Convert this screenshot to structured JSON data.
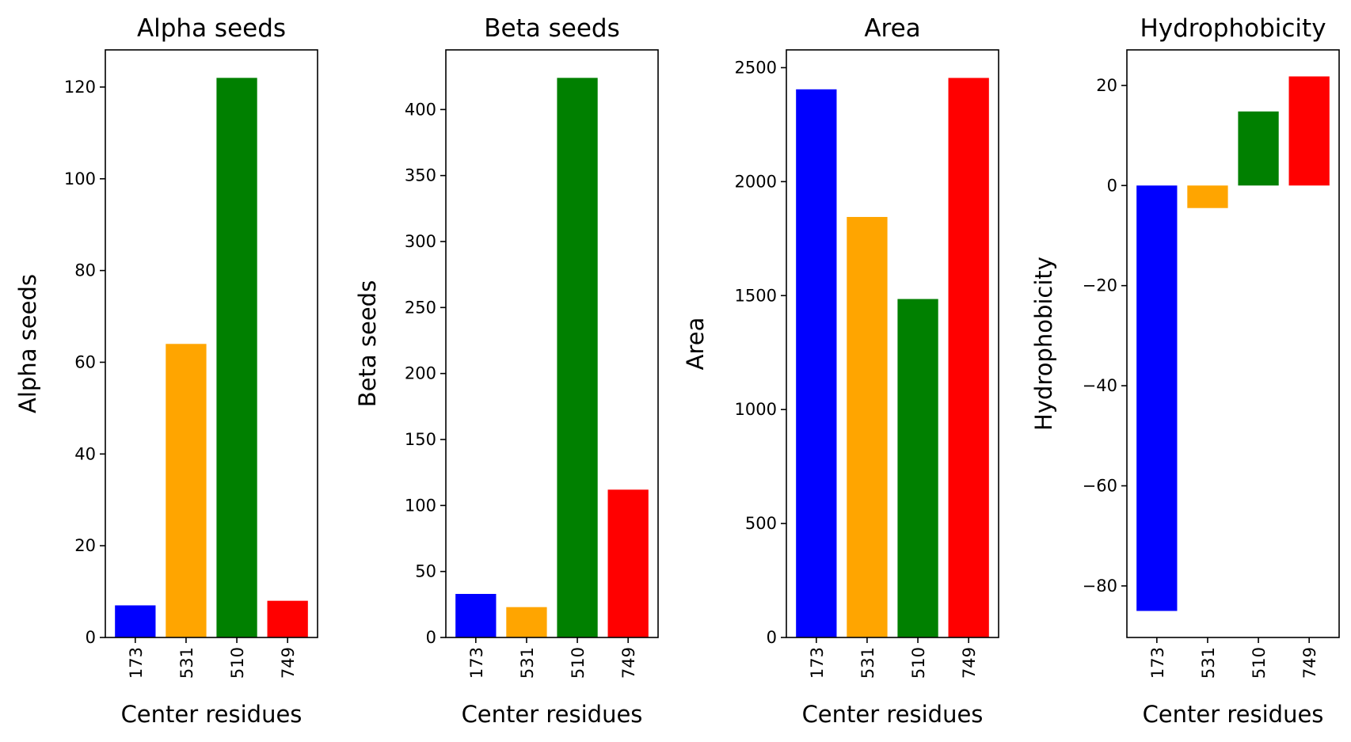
{
  "chart_data": [
    {
      "type": "bar",
      "title": "Alpha seeds",
      "xlabel": "Center residues",
      "ylabel": "Alpha seeds",
      "categories": [
        "173",
        "531",
        "510",
        "749"
      ],
      "values": [
        7,
        64,
        122,
        8
      ],
      "colors": [
        "#0000ff",
        "#ffa500",
        "#008000",
        "#ff0000"
      ],
      "ylim": [
        0,
        128.1
      ],
      "yticks": [
        0,
        20,
        40,
        60,
        80,
        100,
        120
      ],
      "ytick_labels": [
        "0",
        "20",
        "40",
        "60",
        "80",
        "100",
        "120"
      ],
      "grid": false
    },
    {
      "type": "bar",
      "title": "Beta seeds",
      "xlabel": "Center residues",
      "ylabel": "Beta seeds",
      "categories": [
        "173",
        "531",
        "510",
        "749"
      ],
      "values": [
        33,
        23,
        424,
        112
      ],
      "colors": [
        "#0000ff",
        "#ffa500",
        "#008000",
        "#ff0000"
      ],
      "ylim": [
        0,
        445.2
      ],
      "yticks": [
        0,
        50,
        100,
        150,
        200,
        250,
        300,
        350,
        400
      ],
      "ytick_labels": [
        "0",
        "50",
        "100",
        "150",
        "200",
        "250",
        "300",
        "350",
        "400"
      ],
      "grid": false
    },
    {
      "type": "bar",
      "title": "Area",
      "xlabel": "Center residues",
      "ylabel": "Area",
      "categories": [
        "173",
        "531",
        "510",
        "749"
      ],
      "values": [
        2405,
        1845,
        1485,
        2455
      ],
      "colors": [
        "#0000ff",
        "#ffa500",
        "#008000",
        "#ff0000"
      ],
      "ylim": [
        0,
        2578
      ],
      "yticks": [
        0,
        500,
        1000,
        1500,
        2000,
        2500
      ],
      "ytick_labels": [
        "0",
        "500",
        "1000",
        "1500",
        "2000",
        "2500"
      ],
      "grid": false
    },
    {
      "type": "bar",
      "title": "Hydrophobicity",
      "xlabel": "Center residues",
      "ylabel": "Hydrophobicity",
      "categories": [
        "173",
        "531",
        "510",
        "749"
      ],
      "values": [
        -85,
        -4.5,
        14.8,
        21.8
      ],
      "colors": [
        "#0000ff",
        "#ffa500",
        "#008000",
        "#ff0000"
      ],
      "ylim": [
        -90.3,
        27.1
      ],
      "yticks": [
        -80,
        -60,
        -40,
        -20,
        0,
        20
      ],
      "ytick_labels": [
        "−80",
        "−60",
        "−40",
        "−20",
        "0",
        "20"
      ],
      "grid": false
    }
  ]
}
